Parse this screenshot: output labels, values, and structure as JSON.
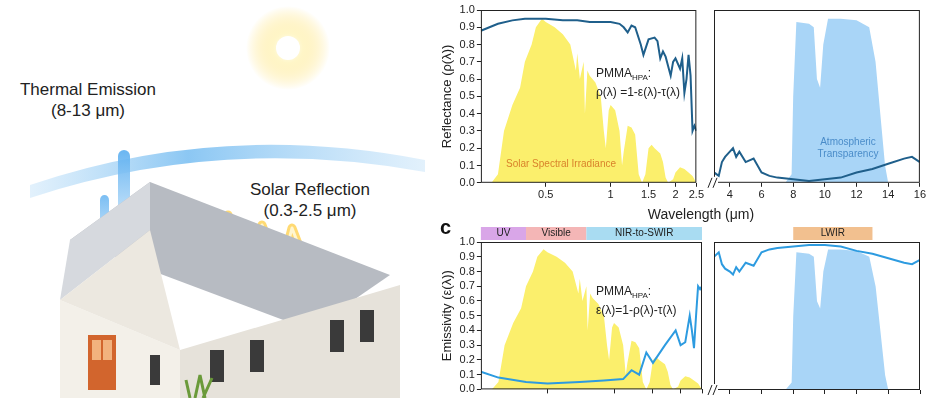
{
  "illustration": {
    "labels": [
      {
        "title": "Thermal Emission",
        "detail": "(8-13 μm)"
      },
      {
        "title": "Solar Reflection",
        "detail": "(0.3-2.5 μm)"
      }
    ]
  },
  "chart_data": [
    {
      "type": "line",
      "y_label": "Reflectance (ρ(λ))",
      "x_label": "Wavelength (μm)",
      "annotation": {
        "text": "PMMA",
        "subscript": "HPA",
        "suffix": ":",
        "formula": "ρ(λ) =1-ε(λ)-τ(λ)"
      },
      "log": "x",
      "grid": false,
      "tick_labels": true,
      "xlim": [
        0.25,
        2.5
      ],
      "xticks": [
        0.5,
        1,
        1.5,
        2,
        2.5
      ],
      "ylim": [
        0,
        1
      ],
      "yticks": [
        {
          "value": 0,
          "label": "0.0"
        },
        {
          "value": 0.1,
          "label": "0.1"
        },
        {
          "value": 0.2,
          "label": "0.2"
        },
        {
          "value": 0.3,
          "label": "0.3"
        },
        {
          "value": 0.4,
          "label": "0.4"
        },
        {
          "value": 0.5,
          "label": "0.5"
        },
        {
          "value": 0.6,
          "label": "0.6"
        },
        {
          "value": 0.7,
          "label": "0.7"
        },
        {
          "value": 0.8,
          "label": "0.8"
        },
        {
          "value": 0.9,
          "label": "0.9"
        },
        {
          "value": 1,
          "label": "1.0"
        }
      ],
      "series": [
        {
          "name": "Solar Spectral Irradiance",
          "type": "area",
          "color": "#fbef6c",
          "x": [
            0.28,
            0.3,
            0.32,
            0.35,
            0.38,
            0.4,
            0.43,
            0.45,
            0.48,
            0.5,
            0.55,
            0.6,
            0.65,
            0.69,
            0.7,
            0.72,
            0.75,
            0.76,
            0.78,
            0.8,
            0.85,
            0.9,
            0.93,
            0.95,
            0.98,
            1.0,
            1.05,
            1.1,
            1.13,
            1.15,
            1.2,
            1.25,
            1.3,
            1.35,
            1.4,
            1.45,
            1.5,
            1.55,
            1.6,
            1.7,
            1.75,
            1.8,
            1.85,
            1.95,
            2.0,
            2.1,
            2.2,
            2.3,
            2.4,
            2.5
          ],
          "values": [
            0,
            0.05,
            0.3,
            0.45,
            0.55,
            0.7,
            0.8,
            0.9,
            0.95,
            0.93,
            0.9,
            0.86,
            0.8,
            0.65,
            0.75,
            0.6,
            0.7,
            0.4,
            0.65,
            0.62,
            0.58,
            0.5,
            0.3,
            0.2,
            0.42,
            0.45,
            0.42,
            0.3,
            0.1,
            0.18,
            0.33,
            0.32,
            0.28,
            0.05,
            0,
            0.05,
            0.2,
            0.22,
            0.2,
            0.17,
            0.12,
            0.03,
            0,
            0.02,
            0.06,
            0.09,
            0.08,
            0.06,
            0.04,
            0
          ]
        },
        {
          "type": "line",
          "color": "#1f5f8b",
          "x": [
            0.25,
            0.3,
            0.35,
            0.4,
            0.5,
            0.6,
            0.7,
            0.8,
            0.9,
            1.0,
            1.1,
            1.15,
            1.2,
            1.25,
            1.3,
            1.38,
            1.42,
            1.5,
            1.6,
            1.65,
            1.7,
            1.75,
            1.8,
            1.9,
            1.95,
            2.0,
            2.1,
            2.15,
            2.2,
            2.25,
            2.3,
            2.35,
            2.4,
            2.45,
            2.5
          ],
          "values": [
            0.88,
            0.92,
            0.94,
            0.95,
            0.95,
            0.94,
            0.94,
            0.93,
            0.93,
            0.93,
            0.92,
            0.9,
            0.87,
            0.91,
            0.9,
            0.8,
            0.74,
            0.83,
            0.84,
            0.82,
            0.72,
            0.76,
            0.73,
            0.62,
            0.7,
            0.72,
            0.66,
            0.72,
            0.52,
            0.6,
            0.74,
            0.62,
            0.3,
            0.33,
            0.3
          ]
        }
      ]
    },
    {
      "type": "line",
      "grid": false,
      "tick_labels": "x",
      "xlim": [
        3,
        16
      ],
      "xticks": [
        4,
        6,
        8,
        10,
        12,
        14,
        16
      ],
      "ylim": [
        0,
        1
      ],
      "yticks": [
        {
          "value": 0,
          "label": "0.0"
        },
        {
          "value": 0.1,
          "label": "0.1"
        },
        {
          "value": 0.2,
          "label": "0.2"
        },
        {
          "value": 0.3,
          "label": "0.3"
        },
        {
          "value": 0.4,
          "label": "0.4"
        },
        {
          "value": 0.5,
          "label": "0.5"
        },
        {
          "value": 0.6,
          "label": "0.6"
        },
        {
          "value": 0.7,
          "label": "0.7"
        },
        {
          "value": 0.8,
          "label": "0.8"
        },
        {
          "value": 0.9,
          "label": "0.9"
        },
        {
          "value": 1,
          "label": "1.0"
        }
      ],
      "series": [
        {
          "name": "Atmospheric Transparency",
          "type": "area",
          "color": "#a9d5f7",
          "x": [
            7.5,
            7.9,
            8.0,
            8.2,
            9.0,
            9.3,
            9.5,
            9.7,
            9.9,
            10.2,
            11,
            12,
            12.8,
            13.2,
            13.5,
            13.8,
            14
          ],
          "values": [
            0,
            0.05,
            0.5,
            0.93,
            0.92,
            0.9,
            0.6,
            0.55,
            0.8,
            0.95,
            0.95,
            0.94,
            0.9,
            0.7,
            0.4,
            0.1,
            0
          ]
        },
        {
          "type": "line",
          "color": "#1f5f8b",
          "x": [
            3,
            3.3,
            3.5,
            3.7,
            4,
            4.2,
            4.4,
            4.6,
            5,
            5.5,
            6,
            6.5,
            7,
            8,
            9,
            10,
            11,
            12,
            13,
            14,
            15,
            15.5,
            16
          ],
          "values": [
            0.06,
            0.04,
            0.12,
            0.15,
            0.18,
            0.2,
            0.15,
            0.18,
            0.12,
            0.14,
            0.06,
            0.04,
            0.03,
            0.02,
            0.01,
            0.02,
            0.03,
            0.06,
            0.08,
            0.11,
            0.14,
            0.15,
            0.12
          ]
        }
      ]
    },
    {
      "type": "line",
      "panel_label": "c",
      "y_label": "Emissivity (ε(λ))",
      "annotation": {
        "text": "PMMA",
        "subscript": "HPA",
        "suffix": ":",
        "formula": "ε(λ)=1-ρ(λ)-τ(λ)"
      },
      "bands": [
        {
          "label": "UV",
          "range": [
            0.25,
            0.4
          ],
          "color": "#d9a6e8"
        },
        {
          "label": "Visible",
          "range": [
            0.4,
            0.75
          ],
          "color": "#f4b6b6"
        },
        {
          "label": "NIR-to-SWIR",
          "range": [
            0.75,
            2.5
          ],
          "color": "#a9dcf2"
        }
      ],
      "log": "x",
      "grid": false,
      "tick_labels": "y",
      "xlim": [
        0.25,
        2.5
      ],
      "xticks": [
        0.5,
        1,
        1.5,
        2,
        2.5
      ],
      "ylim": [
        0,
        1
      ],
      "yticks": [
        {
          "value": 0,
          "label": "0.0"
        },
        {
          "value": 0.1,
          "label": "0.1"
        },
        {
          "value": 0.2,
          "label": "0.2"
        },
        {
          "value": 0.3,
          "label": "0.3"
        },
        {
          "value": 0.4,
          "label": "0.4"
        },
        {
          "value": 0.5,
          "label": "0.5"
        },
        {
          "value": 0.6,
          "label": "0.6"
        },
        {
          "value": 0.7,
          "label": "0.7"
        },
        {
          "value": 0.8,
          "label": "0.8"
        },
        {
          "value": 0.9,
          "label": "0.9"
        },
        {
          "value": 1,
          "label": "1.0"
        }
      ],
      "series": [
        {
          "type": "area",
          "color": "#fbef6c",
          "x": [
            0.28,
            0.3,
            0.32,
            0.35,
            0.38,
            0.4,
            0.43,
            0.45,
            0.48,
            0.5,
            0.55,
            0.6,
            0.65,
            0.69,
            0.7,
            0.72,
            0.75,
            0.76,
            0.78,
            0.8,
            0.85,
            0.9,
            0.93,
            0.95,
            0.98,
            1.0,
            1.05,
            1.1,
            1.13,
            1.15,
            1.2,
            1.25,
            1.3,
            1.35,
            1.4,
            1.45,
            1.5,
            1.55,
            1.6,
            1.7,
            1.75,
            1.8,
            1.85,
            1.95,
            2.0,
            2.1,
            2.2,
            2.3,
            2.4,
            2.5
          ],
          "values": [
            0,
            0.05,
            0.3,
            0.45,
            0.55,
            0.7,
            0.8,
            0.9,
            0.95,
            0.93,
            0.9,
            0.86,
            0.8,
            0.65,
            0.75,
            0.6,
            0.7,
            0.4,
            0.65,
            0.62,
            0.58,
            0.5,
            0.3,
            0.2,
            0.42,
            0.45,
            0.42,
            0.3,
            0.1,
            0.18,
            0.33,
            0.32,
            0.28,
            0.05,
            0,
            0.05,
            0.2,
            0.22,
            0.2,
            0.17,
            0.12,
            0.03,
            0,
            0.02,
            0.06,
            0.09,
            0.08,
            0.06,
            0.04,
            0
          ]
        },
        {
          "type": "line",
          "color": "#2d9be0",
          "x": [
            0.25,
            0.3,
            0.4,
            0.5,
            0.7,
            0.9,
            1.1,
            1.2,
            1.3,
            1.4,
            1.5,
            1.7,
            1.9,
            2.0,
            2.1,
            2.2,
            2.25,
            2.3,
            2.35,
            2.4,
            2.45,
            2.5
          ],
          "values": [
            0.12,
            0.08,
            0.05,
            0.04,
            0.05,
            0.06,
            0.07,
            0.13,
            0.1,
            0.25,
            0.18,
            0.3,
            0.4,
            0.3,
            0.32,
            0.5,
            0.4,
            0.28,
            0.5,
            0.7,
            0.68,
            0.7
          ]
        }
      ]
    },
    {
      "type": "line",
      "bands": [
        {
          "label": "LWIR",
          "range": [
            8,
            13
          ],
          "color": "#f2c08f"
        }
      ],
      "grid": false,
      "tick_labels": false,
      "xlim": [
        3,
        16
      ],
      "xticks": [
        4,
        6,
        8,
        10,
        12,
        14,
        16
      ],
      "ylim": [
        0,
        1
      ],
      "yticks": [
        {
          "value": 0,
          "label": "0.0"
        },
        {
          "value": 0.1,
          "label": "0.1"
        },
        {
          "value": 0.2,
          "label": "0.2"
        },
        {
          "value": 0.3,
          "label": "0.3"
        },
        {
          "value": 0.4,
          "label": "0.4"
        },
        {
          "value": 0.5,
          "label": "0.5"
        },
        {
          "value": 0.6,
          "label": "0.6"
        },
        {
          "value": 0.7,
          "label": "0.7"
        },
        {
          "value": 0.8,
          "label": "0.8"
        },
        {
          "value": 0.9,
          "label": "0.9"
        },
        {
          "value": 1,
          "label": "1.0"
        }
      ],
      "series": [
        {
          "type": "area",
          "color": "#a9d5f7",
          "x": [
            7.5,
            7.9,
            8.0,
            8.2,
            9.0,
            9.3,
            9.5,
            9.7,
            9.9,
            10.2,
            11,
            12,
            12.8,
            13.2,
            13.5,
            13.8,
            14
          ],
          "values": [
            0,
            0.05,
            0.5,
            0.93,
            0.92,
            0.9,
            0.6,
            0.55,
            0.8,
            0.95,
            0.95,
            0.94,
            0.9,
            0.7,
            0.4,
            0.1,
            0
          ]
        },
        {
          "type": "line",
          "color": "#2d9be0",
          "x": [
            3,
            3.3,
            3.5,
            3.7,
            4,
            4.2,
            4.4,
            4.6,
            5,
            5.5,
            6,
            6.5,
            7,
            8,
            9,
            10,
            11,
            12,
            13,
            14,
            15,
            15.5,
            16
          ],
          "values": [
            0.9,
            0.93,
            0.85,
            0.82,
            0.8,
            0.78,
            0.83,
            0.8,
            0.86,
            0.84,
            0.93,
            0.95,
            0.96,
            0.97,
            0.98,
            0.98,
            0.97,
            0.94,
            0.92,
            0.89,
            0.86,
            0.85,
            0.88
          ]
        }
      ]
    }
  ]
}
